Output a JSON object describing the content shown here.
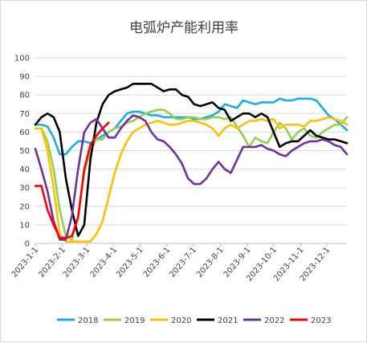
{
  "chart_data": {
    "type": "line",
    "title": "电弧炉产能利用率",
    "xlabel": "",
    "ylabel": "",
    "ylim": [
      0,
      100
    ],
    "yticks": [
      0,
      10,
      20,
      30,
      40,
      50,
      60,
      70,
      80,
      90,
      100
    ],
    "xticks": [
      "2023-1-1",
      "2023-2-1",
      "2023-3-1",
      "2023-4-1",
      "2023-5-1",
      "2023-6-1",
      "2023-7-1",
      "2023-8-1",
      "2023-9-1",
      "2023-10-1",
      "2023-11-1",
      "2023-12-1"
    ],
    "x_unit": "week",
    "grid": "horizontal",
    "legend_position": "bottom",
    "series": [
      {
        "name": "2018",
        "color": "#1AADE6",
        "values": [
          64,
          64,
          63,
          57,
          48,
          48,
          52,
          55,
          55,
          54,
          56,
          58,
          60,
          62,
          66,
          70,
          71,
          71,
          70,
          69,
          69,
          68,
          68,
          68,
          68,
          68,
          67,
          67,
          68,
          69,
          71,
          75,
          74,
          73,
          77,
          76,
          75,
          76,
          76,
          76,
          78,
          77,
          77,
          78,
          78,
          78,
          77,
          73,
          69,
          67,
          64,
          61
        ]
      },
      {
        "name": "2019",
        "color": "#92D050",
        "values": [
          62,
          62,
          55,
          40,
          18,
          4,
          2,
          15,
          38,
          50,
          56,
          56,
          60,
          62,
          63,
          65,
          66,
          68,
          70,
          71,
          72,
          72,
          70,
          67,
          67,
          68,
          68,
          67,
          67,
          68,
          68,
          67,
          68,
          63,
          58,
          52,
          57,
          55,
          54,
          60,
          65,
          62,
          56,
          60,
          62,
          58,
          57,
          60,
          62,
          64,
          64,
          68
        ]
      },
      {
        "name": "2020",
        "color": "#FFC000",
        "values": [
          62,
          62,
          50,
          30,
          5,
          1,
          1,
          1,
          1,
          1,
          5,
          12,
          25,
          38,
          48,
          55,
          60,
          62,
          64,
          65,
          66,
          65,
          64,
          64,
          65,
          66,
          66,
          65,
          64,
          62,
          58,
          62,
          64,
          62,
          64,
          66,
          66,
          67,
          66,
          67,
          62,
          64,
          64,
          64,
          63,
          66,
          66,
          67,
          68,
          67,
          66,
          64
        ]
      },
      {
        "name": "2021",
        "color": "#000000",
        "values": [
          64,
          68,
          70,
          68,
          60,
          35,
          18,
          4,
          10,
          45,
          65,
          75,
          80,
          82,
          83,
          84,
          86,
          86,
          86,
          86,
          84,
          82,
          83,
          83,
          80,
          79,
          75,
          74,
          75,
          76,
          73,
          72,
          66,
          68,
          70,
          70,
          68,
          70,
          68,
          60,
          52,
          54,
          55,
          55,
          58,
          61,
          58,
          57,
          56,
          56,
          55,
          54
        ]
      },
      {
        "name": "2022",
        "color": "#7030A0",
        "values": [
          51,
          40,
          28,
          12,
          2,
          2,
          15,
          40,
          60,
          65,
          67,
          62,
          57,
          57,
          62,
          66,
          69,
          68,
          66,
          60,
          56,
          55,
          52,
          48,
          43,
          35,
          32,
          32,
          35,
          40,
          44,
          40,
          38,
          45,
          52,
          52,
          52,
          53,
          51,
          50,
          48,
          47,
          50,
          52,
          54,
          55,
          55,
          56,
          55,
          53,
          52,
          48
        ]
      },
      {
        "name": "2023",
        "color": "#FF0000",
        "values": [
          31,
          31,
          18,
          10,
          3,
          3,
          4,
          14,
          40,
          53,
          58,
          62,
          65
        ]
      }
    ]
  }
}
